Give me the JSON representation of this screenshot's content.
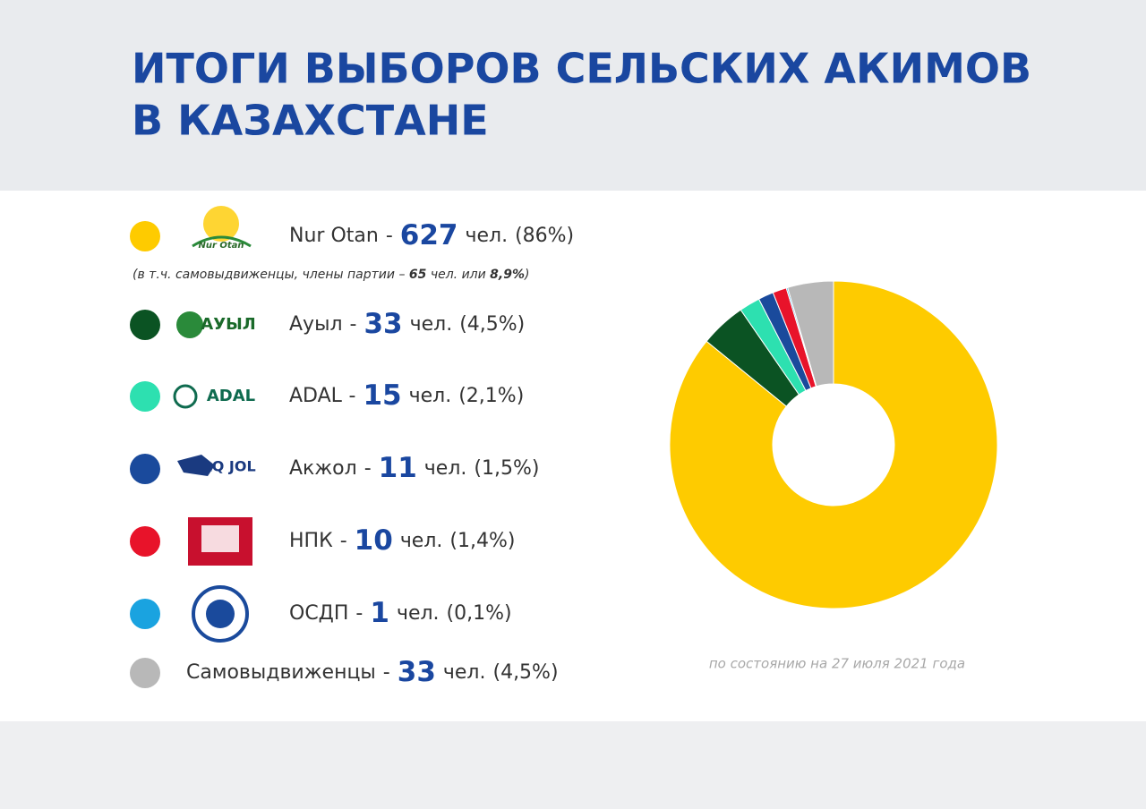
{
  "chart_data": {
    "type": "donut",
    "title": "ИТОГИ ВЫБОРОВ СЕЛЬСКИХ АКИМОВ",
    "subtitle": "В КАЗАХСТАНЕ",
    "categories": [
      "Nur Otan",
      "Ауыл",
      "ADAL",
      "Акжол",
      "НПК",
      "ОСДП",
      "Самовыдвиженцы"
    ],
    "values": [
      627,
      33,
      15,
      11,
      10,
      1,
      33
    ],
    "shares": [
      86,
      4.5,
      2.1,
      1.5,
      1.4,
      0.1,
      4.5
    ],
    "share_labels": [
      "(86%)",
      "(4,5%)",
      "(2,1%)",
      "(1,5%)",
      "(1,4%)",
      "(0,1%)",
      "(4,5%)"
    ],
    "colors": [
      "#fecb00",
      "#0b5323",
      "#2de0b0",
      "#1a4a9c",
      "#e8132a",
      "#1aa3e0",
      "#b8b8b8"
    ],
    "logo_labels": [
      "Nur Otan",
      "АУЫЛ",
      "ADAL",
      "AQ JOL",
      null,
      null,
      null
    ],
    "unit": "чел.",
    "separator": "-",
    "note": [
      "(в т.ч. самовыдвиженцы, члены партии – ",
      "65",
      " чел. или ",
      "8,9%",
      ")"
    ],
    "footnote": "по состоянию на 27 июля 2021 года"
  }
}
